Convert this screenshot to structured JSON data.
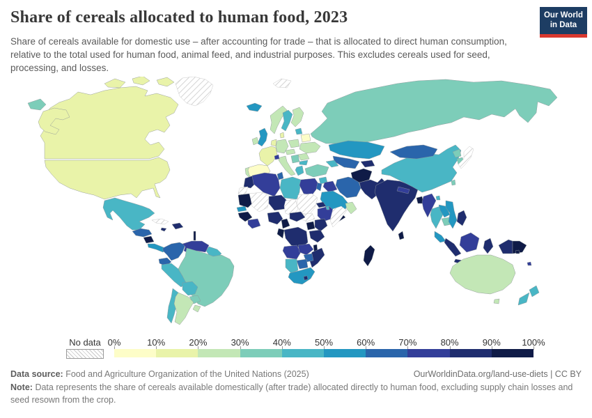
{
  "header": {
    "title": "Share of cereals allocated to human food, 2023",
    "subtitle": "Share of cereals available for domestic use – after accounting for trade – that is allocated to direct human consumption, relative to the total used for human food, animal feed, and industrial purposes. This excludes cereals used for seed, processing, and losses.",
    "logo": {
      "line1": "Our World",
      "line2": "in Data",
      "bg_color": "#1d3d63",
      "accent_color": "#d9382f"
    }
  },
  "legend": {
    "no_data_label": "No data",
    "tick_labels": [
      "0%",
      "10%",
      "20%",
      "30%",
      "40%",
      "50%",
      "60%",
      "70%",
      "80%",
      "90%",
      "100%"
    ],
    "bin_colors": [
      "#fdfdc8",
      "#e9f3a9",
      "#c3e7b6",
      "#7dcdb9",
      "#49b6c5",
      "#2397c1",
      "#2a65ab",
      "#333e99",
      "#1f2d6e",
      "#0f1b47"
    ]
  },
  "footer": {
    "source_label": "Data source:",
    "source_text": "Food and Agriculture Organization of the United Nations (2025)",
    "citation": "OurWorldinData.org/land-use-diets | CC BY",
    "note_label": "Note:",
    "note_text": "Data represents the share of cereals available domestically (after trade) allocated directly to human food, excluding supply chain losses and seed resown from the crop."
  },
  "chart_data": {
    "type": "choropleth_map",
    "title": "Share of cereals allocated to human food",
    "year": 2023,
    "unit": "%",
    "bins": [
      "0-10%",
      "10-20%",
      "20-30%",
      "30-40%",
      "40-50%",
      "50-60%",
      "60-70%",
      "70-80%",
      "80-90%",
      "90-100%"
    ],
    "region_bins": {
      "greenland": "no-data",
      "svalbard": "no-data",
      "canada": "10-20%",
      "canada-arctic-1": "10-20%",
      "canada-arctic-2": "10-20%",
      "canada-arctic-3": "10-20%",
      "alaska": "10-20%",
      "usa": "10-20%",
      "mexico": "40-50%",
      "guatemala-honduras": "60-70%",
      "nicaragua": "90-100%",
      "costa-rica-panama": "50-60%",
      "cuba": "no-data",
      "hispaniola": "80-90%",
      "jamaica": "80-90%",
      "lesser-antilles": "90-100%",
      "colombia": "60-70%",
      "venezuela": "70-80%",
      "guianas": "40-50%",
      "ecuador": "60-70%",
      "peru": "40-50%",
      "brazil": "30-40%",
      "bolivia": "40-50%",
      "paraguay": "30-40%",
      "chile": "40-50%",
      "argentina": "20-30%",
      "uruguay": "20-30%",
      "iceland": "50-60%",
      "norway": "20-30%",
      "sweden": "40-50%",
      "finland": "20-30%",
      "baltics": "40-50%",
      "uk": "50-60%",
      "ireland": "20-30%",
      "denmark": "10-20%",
      "benelux": "10-20%",
      "germany": "20-30%",
      "poland": "20-30%",
      "france": "10-20%",
      "spain": "0-10%",
      "portugal": "20-30%",
      "italy": "20-30%",
      "switzerland": "70-80%",
      "austria-czechia": "20-30%",
      "belarus": "0-10%",
      "ukraine": "20-30%",
      "romania": "20-30%",
      "bulgaria": "40-50%",
      "balkans": "30-40%",
      "greece": "40-50%",
      "russia": "30-40%",
      "russia-chukotka": "30-40%",
      "turkey": "30-40%",
      "caucasus": "40-50%",
      "syria": "40-50%",
      "iraq": "70-80%",
      "jordan-israel": "60-70%",
      "iran": "60-70%",
      "saudi-arabia": "50-60%",
      "yemen": "90-100%",
      "oman-uae": "20-30%",
      "kazakhstan": "50-60%",
      "uzbekistan-turkmenistan": "60-70%",
      "kyrgyzstan-tajikistan": "80-90%",
      "afghanistan": "90-100%",
      "pakistan": "80-90%",
      "india": "80-90%",
      "nepal": "70-80%",
      "bangladesh": "90-100%",
      "sri-lanka": "90-100%",
      "myanmar": "70-80%",
      "thailand": "40-50%",
      "laos": "50-60%",
      "cambodia": "30-40%",
      "vietnam": "50-60%",
      "malaysia": "50-60%",
      "sumatra": "80-90%",
      "java": "80-90%",
      "borneo": "70-80%",
      "sulawesi": "80-90%",
      "indonesia-papua": "80-90%",
      "papua-new-guinea": "90-100%",
      "philippines": "80-90%",
      "taiwan": "30-40%",
      "hainan": "40-50%",
      "china": "40-50%",
      "mongolia": "60-70%",
      "north-korea": "30-40%",
      "south-korea": "30-40%",
      "japan": "no-data",
      "australia": "20-30%",
      "tasmania": "20-30%",
      "new-zealand-north": "40-50%",
      "new-zealand-south": "40-50%",
      "fiji": "70-80%",
      "solomon-islands": "90-100%",
      "morocco": "80-90%",
      "western-sahara": "no-data",
      "algeria": "70-80%",
      "tunisia": "60-70%",
      "libya": "40-50%",
      "egypt": "70-80%",
      "mauritania": "90-100%",
      "mali": "no-data",
      "niger": "80-90%",
      "chad": "no-data",
      "sudan": "no-data",
      "south-sudan": "no-data",
      "eritrea": "80-90%",
      "ethiopia": "70-80%",
      "djibouti": "40-50%",
      "somalia": "no-data",
      "senegal": "50-60%",
      "guinea": "90-100%",
      "ivory-coast-ghana": "70-80%",
      "nigeria": "80-90%",
      "cameroon": "90-100%",
      "central-african-republic": "80-90%",
      "drc": "80-90%",
      "congo-gabon": "90-100%",
      "uganda": "90-100%",
      "kenya": "80-90%",
      "tanzania": "80-90%",
      "angola": "70-80%",
      "zambia": "70-80%",
      "malawi": "90-100%",
      "mozambique": "80-90%",
      "zimbabwe": "60-70%",
      "botswana": "60-70%",
      "namibia": "40-50%",
      "south-africa": "50-60%",
      "lesotho": "80-90%",
      "madagascar": "90-100%"
    }
  }
}
